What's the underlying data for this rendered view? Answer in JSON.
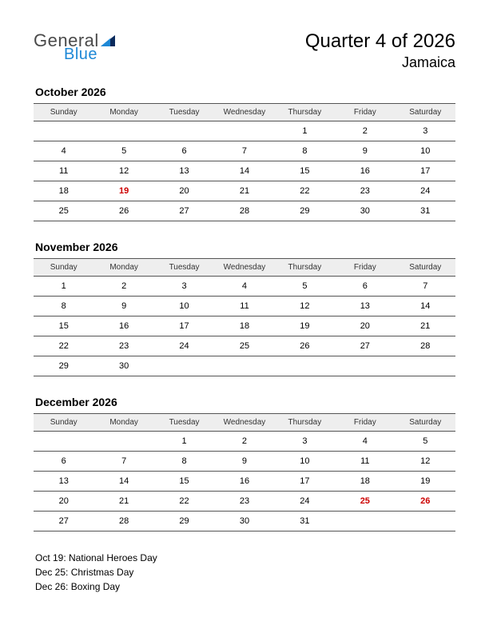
{
  "logo": {
    "word1": "General",
    "word2": "Blue"
  },
  "header": {
    "title": "Quarter 4 of 2026",
    "subtitle": "Jamaica"
  },
  "dayHeaders": [
    "Sunday",
    "Monday",
    "Tuesday",
    "Wednesday",
    "Thursday",
    "Friday",
    "Saturday"
  ],
  "colors": {
    "text": "#000000",
    "holiday": "#cc0000",
    "headerBg": "#eeeeee",
    "border": "#555555",
    "logoGray": "#4a4a4a",
    "logoBlue": "#1e88d6"
  },
  "months": [
    {
      "title": "October 2026",
      "weeks": [
        [
          "",
          "",
          "",
          "",
          "1",
          "2",
          "3"
        ],
        [
          "4",
          "5",
          "6",
          "7",
          "8",
          "9",
          "10"
        ],
        [
          "11",
          "12",
          "13",
          "14",
          "15",
          "16",
          "17"
        ],
        [
          "18",
          "19",
          "20",
          "21",
          "22",
          "23",
          "24"
        ],
        [
          "25",
          "26",
          "27",
          "28",
          "29",
          "30",
          "31"
        ]
      ],
      "holidays": [
        [
          3,
          1
        ]
      ]
    },
    {
      "title": "November 2026",
      "weeks": [
        [
          "1",
          "2",
          "3",
          "4",
          "5",
          "6",
          "7"
        ],
        [
          "8",
          "9",
          "10",
          "11",
          "12",
          "13",
          "14"
        ],
        [
          "15",
          "16",
          "17",
          "18",
          "19",
          "20",
          "21"
        ],
        [
          "22",
          "23",
          "24",
          "25",
          "26",
          "27",
          "28"
        ],
        [
          "29",
          "30",
          "",
          "",
          "",
          "",
          ""
        ]
      ],
      "holidays": []
    },
    {
      "title": "December 2026",
      "weeks": [
        [
          "",
          "",
          "1",
          "2",
          "3",
          "4",
          "5"
        ],
        [
          "6",
          "7",
          "8",
          "9",
          "10",
          "11",
          "12"
        ],
        [
          "13",
          "14",
          "15",
          "16",
          "17",
          "18",
          "19"
        ],
        [
          "20",
          "21",
          "22",
          "23",
          "24",
          "25",
          "26"
        ],
        [
          "27",
          "28",
          "29",
          "30",
          "31",
          "",
          ""
        ]
      ],
      "holidays": [
        [
          3,
          5
        ],
        [
          3,
          6
        ]
      ]
    }
  ],
  "holidayList": [
    "Oct 19: National Heroes Day",
    "Dec 25: Christmas Day",
    "Dec 26: Boxing Day"
  ]
}
